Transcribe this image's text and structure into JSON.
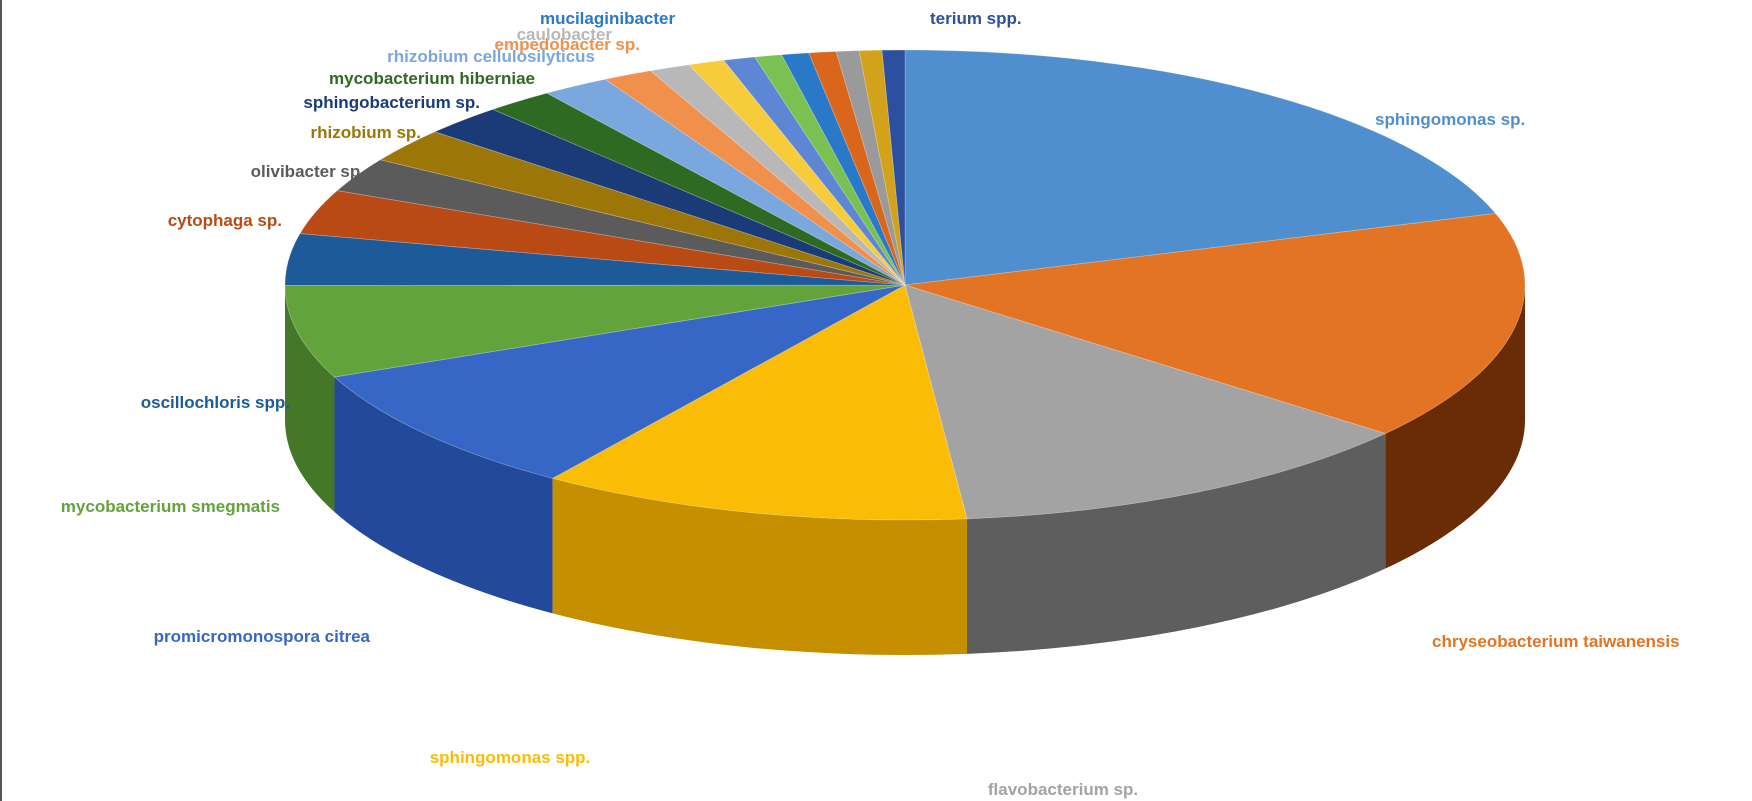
{
  "chart_data": {
    "type": "pie",
    "title": "",
    "three_d": true,
    "legend": "none",
    "labels_position": "outside",
    "slices": [
      {
        "label": "sphingomonas sp.",
        "value": 17.0,
        "color": "#4f8fcf",
        "side": "#2d5f91"
      },
      {
        "label": "chryseobacterium taiwanensis",
        "value": 13.4,
        "color": "#e27424",
        "side": "#6a2c06"
      },
      {
        "label": "flavobacterium sp.",
        "value": 10.6,
        "color": "#a3a3a3",
        "side": "#5e5e5e"
      },
      {
        "label": "sphingomonas spp.",
        "value": 9.5,
        "color": "#fbbc05",
        "side": "#c58f00"
      },
      {
        "label": "promicromonospora citrea",
        "value": 7.6,
        "color": "#3767c6",
        "side": "#23499a"
      },
      {
        "label": "mycobacterium smegmatis",
        "value": 5.4,
        "color": "#62a33c",
        "side": "#447728"
      },
      {
        "label": "oscillochloris spp.",
        "value": 3.0,
        "color": "#1c5a99",
        "side": "#103a66"
      },
      {
        "label": "cytophaga sp.",
        "value": 2.6,
        "color": "#b94a14",
        "side": "#7a2e0a"
      },
      {
        "label": "olivibacter sp.",
        "value": 2.0,
        "color": "#5b5b5b",
        "side": "#3a3a3a"
      },
      {
        "label": "rhizobium sp.",
        "value": 2.0,
        "color": "#9d7608",
        "side": "#6b5005"
      },
      {
        "label": "sphingobacterium sp.",
        "value": 1.8,
        "color": "#1a3a78",
        "side": "#0f2450"
      },
      {
        "label": "mycobacterium hiberniae",
        "value": 1.5,
        "color": "#2f6a22",
        "side": "#1e4516"
      },
      {
        "label": "rhizobium cellulosilyticus",
        "value": 1.5,
        "color": "#7aa7dd",
        "side": "#4f78a8"
      },
      {
        "label": "empedobacter sp.",
        "value": 1.1,
        "color": "#f0904a",
        "side": "#a85c24"
      },
      {
        "label": "caulobacter",
        "value": 0.9,
        "color": "#b8b8b8",
        "side": "#7c7c7c"
      },
      {
        "label": "",
        "value": 0.8,
        "color": "#f7cc3b",
        "side": "#b08f1c"
      },
      {
        "label": "",
        "value": 0.7,
        "color": "#5d86d4",
        "side": "#3a5c99"
      },
      {
        "label": "",
        "value": 0.6,
        "color": "#7ac152",
        "side": "#508633"
      },
      {
        "label": "mucilaginibacter",
        "value": 0.6,
        "color": "#2a78c8",
        "side": "#1a4f88"
      },
      {
        "label": "",
        "value": 0.6,
        "color": "#d9661b",
        "side": "#8f3f0c"
      },
      {
        "label": "",
        "value": 0.5,
        "color": "#9a9a9a",
        "side": "#666666"
      },
      {
        "label": "",
        "value": 0.5,
        "color": "#d1a21a",
        "side": "#8c6b0c"
      },
      {
        "label": "terium spp.",
        "value": 0.5,
        "color": "#2c4f9e",
        "side": "#1b3266"
      }
    ]
  }
}
